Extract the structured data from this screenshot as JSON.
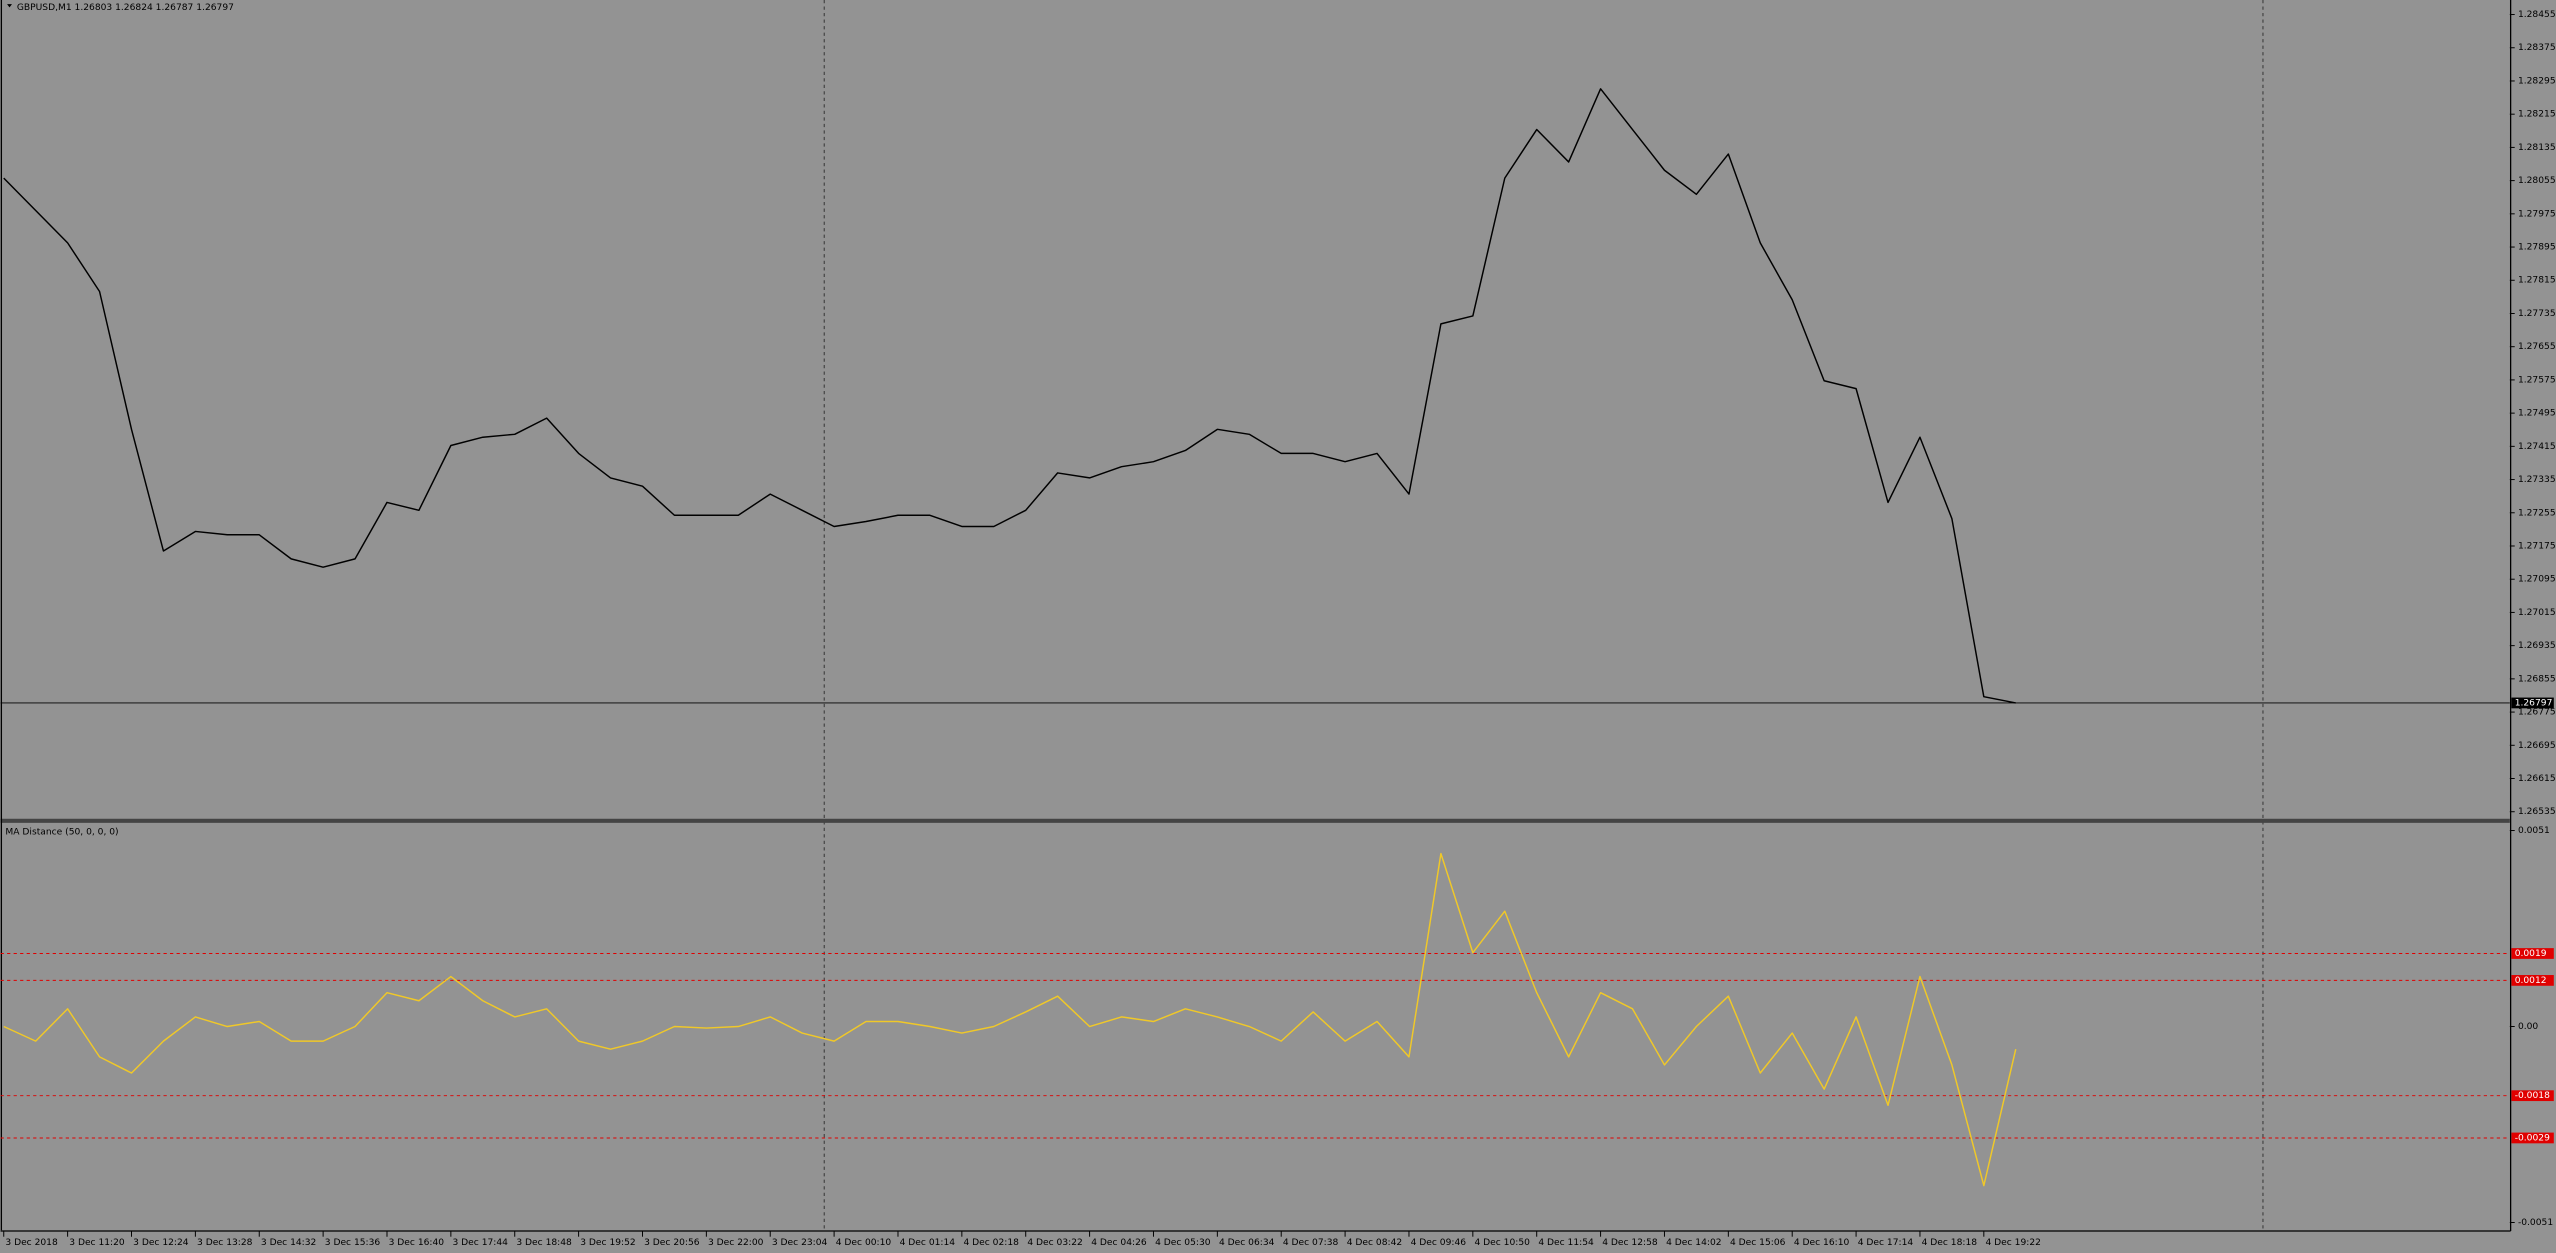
{
  "chart_data": [
    {
      "type": "line",
      "title": "GBPUSD,M1  1.26803 1.26824 1.26787 1.26797",
      "color": "#000000",
      "values": [
        1.28061,
        1.27983,
        1.27905,
        1.27788,
        1.27456,
        1.27163,
        1.2721,
        1.27202,
        1.27202,
        1.27144,
        1.27124,
        1.27144,
        1.2728,
        1.27261,
        1.27417,
        1.27437,
        1.27444,
        1.27483,
        1.27398,
        1.27339,
        1.27319,
        1.27249,
        1.27249,
        1.27249,
        1.273,
        1.27261,
        1.27222,
        1.27234,
        1.27249,
        1.27249,
        1.27222,
        1.27222,
        1.27261,
        1.27351,
        1.27339,
        1.27366,
        1.27378,
        1.27405,
        1.27456,
        1.27444,
        1.27398,
        1.27398,
        1.27378,
        1.27398,
        1.273,
        1.2771,
        1.27729,
        1.28061,
        1.28178,
        1.281,
        1.28276,
        1.28178,
        1.2808,
        1.28022,
        1.28119,
        1.27905,
        1.27768,
        1.27573,
        1.27554,
        1.2728,
        1.27437,
        1.27241,
        1.26812,
        1.26797
      ],
      "last_price": 1.26797,
      "xlim": [
        -0.1,
        78.47
      ],
      "ylim": [
        1.2652,
        1.2849
      ],
      "yticks": [
        1.28455,
        1.28375,
        1.28295,
        1.28215,
        1.28135,
        1.28055,
        1.27975,
        1.27895,
        1.27815,
        1.27735,
        1.27655,
        1.27575,
        1.27495,
        1.27415,
        1.27335,
        1.27255,
        1.27175,
        1.27095,
        1.27015,
        1.26935,
        1.26855,
        1.26775,
        1.26695,
        1.26615,
        1.26535
      ]
    },
    {
      "type": "line",
      "title": "MA Distance (50, 0, 0, 0)",
      "color": "#f0c828",
      "values": [
        0,
        -0.00038,
        0.00046,
        -0.00079,
        -0.00121,
        -0.00038,
        0.00025,
        0,
        0.00013,
        -0.00038,
        -0.00038,
        0,
        0.00088,
        0.00067,
        0.0013,
        0.00067,
        0.00025,
        0.00046,
        -0.00038,
        -0.00059,
        -0.00038,
        0,
        -4e-05,
        0,
        0.00025,
        -0.00017,
        -0.00038,
        0.00013,
        0.00013,
        0,
        -0.00017,
        0,
        0.00038,
        0.00079,
        0,
        0.00025,
        0.00013,
        0.00046,
        0.00025,
        0,
        -0.00038,
        0.00038,
        -0.00038,
        0.00013,
        -0.00079,
        0.0045,
        0.00192,
        0.003,
        0.00088,
        -0.00079,
        0.00088,
        0.00046,
        -0.001,
        0,
        0.00079,
        -0.00121,
        -0.00017,
        -0.00163,
        0.00025,
        -0.00205,
        0.0013,
        -0.001,
        -0.00414,
        -0.00059
      ],
      "levels": [
        0.0019,
        0.0012,
        -0.0018,
        -0.0029
      ],
      "xlim": [
        -0.1,
        78.47
      ],
      "ylim": [
        -0.0053,
        0.0053
      ],
      "yticks": [
        0.0051,
        {
          "value": 0,
          "label": "0.00"
        },
        -0.0051
      ],
      "xticks": [
        {
          "value": 0,
          "label": "3 Dec 2018"
        },
        {
          "value": 2,
          "label": "3 Dec 11:20"
        },
        {
          "value": 4,
          "label": "3 Dec 12:24"
        },
        {
          "value": 6,
          "label": "3 Dec 13:28"
        },
        {
          "value": 8,
          "label": "3 Dec 14:32"
        },
        {
          "value": 10,
          "label": "3 Dec 15:36"
        },
        {
          "value": 12,
          "label": "3 Dec 16:40"
        },
        {
          "value": 14,
          "label": "3 Dec 17:44"
        },
        {
          "value": 16,
          "label": "3 Dec 18:48"
        },
        {
          "value": 18,
          "label": "3 Dec 19:52"
        },
        {
          "value": 20,
          "label": "3 Dec 20:56"
        },
        {
          "value": 22,
          "label": "3 Dec 22:00"
        },
        {
          "value": 24,
          "label": "3 Dec 23:04"
        },
        {
          "value": 26,
          "label": "4 Dec 00:10"
        },
        {
          "value": 28,
          "label": "4 Dec 01:14"
        },
        {
          "value": 30,
          "label": "4 Dec 02:18"
        },
        {
          "value": 32,
          "label": "4 Dec 03:22"
        },
        {
          "value": 34,
          "label": "4 Dec 04:26"
        },
        {
          "value": 36,
          "label": "4 Dec 05:30"
        },
        {
          "value": 38,
          "label": "4 Dec 06:34"
        },
        {
          "value": 40,
          "label": "4 Dec 07:38"
        },
        {
          "value": 42,
          "label": "4 Dec 08:42"
        },
        {
          "value": 44,
          "label": "4 Dec 09:46"
        },
        {
          "value": 46,
          "label": "4 Dec 10:50"
        },
        {
          "value": 48,
          "label": "4 Dec 11:54"
        },
        {
          "value": 50,
          "label": "4 Dec 12:58"
        },
        {
          "value": 52,
          "label": "4 Dec 14:02"
        },
        {
          "value": 54,
          "label": "4 Dec 15:06"
        },
        {
          "value": 56,
          "label": "4 Dec 16:10"
        },
        {
          "value": 58,
          "label": "4 Dec 17:14"
        },
        {
          "value": 60,
          "label": "4 Dec 18:18"
        },
        {
          "value": 62,
          "label": "4 Dec 19:22"
        }
      ]
    }
  ]
}
